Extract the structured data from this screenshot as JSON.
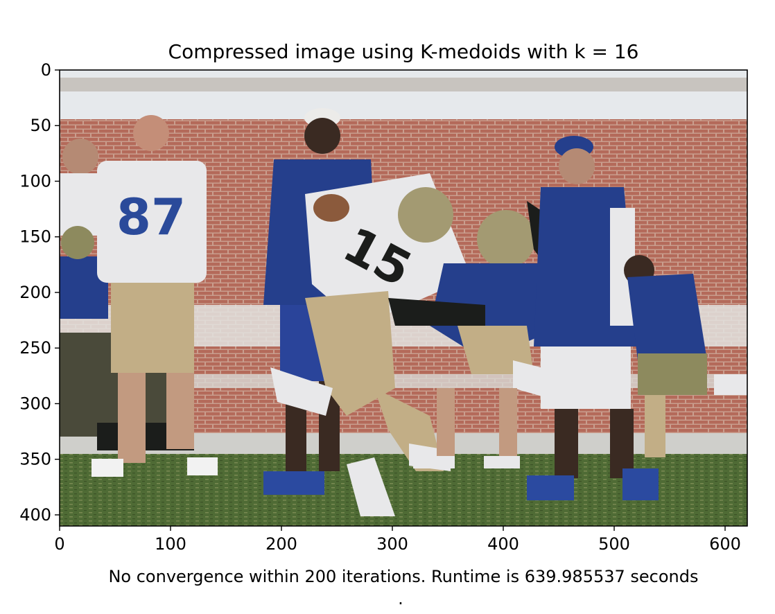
{
  "chart_data": {
    "type": "image",
    "title": "Compressed image using K-medoids with k = 16",
    "xlabel": "No convergence within 200 iterations. Runtime is 639.985537 seconds",
    "xlabel_trailing": ".",
    "xlim": [
      0,
      620
    ],
    "ylim": [
      410,
      0
    ],
    "xticks": [
      0,
      100,
      200,
      300,
      400,
      500,
      600
    ],
    "yticks": [
      0,
      50,
      100,
      150,
      200,
      250,
      300,
      350,
      400
    ],
    "image_description_colors": {
      "sky_band": "#e6e9ec",
      "wall_top": "#c8c4bf",
      "brick": "#b46a5a",
      "mortar": "#c99e8e",
      "grass": "#4f6b35",
      "grass_light": "#7a8a52",
      "navy": "#253f8c",
      "white_jersey": "#e8e8ea",
      "gold_pants": "#c2ae86",
      "dark": "#1b1d1b"
    }
  }
}
